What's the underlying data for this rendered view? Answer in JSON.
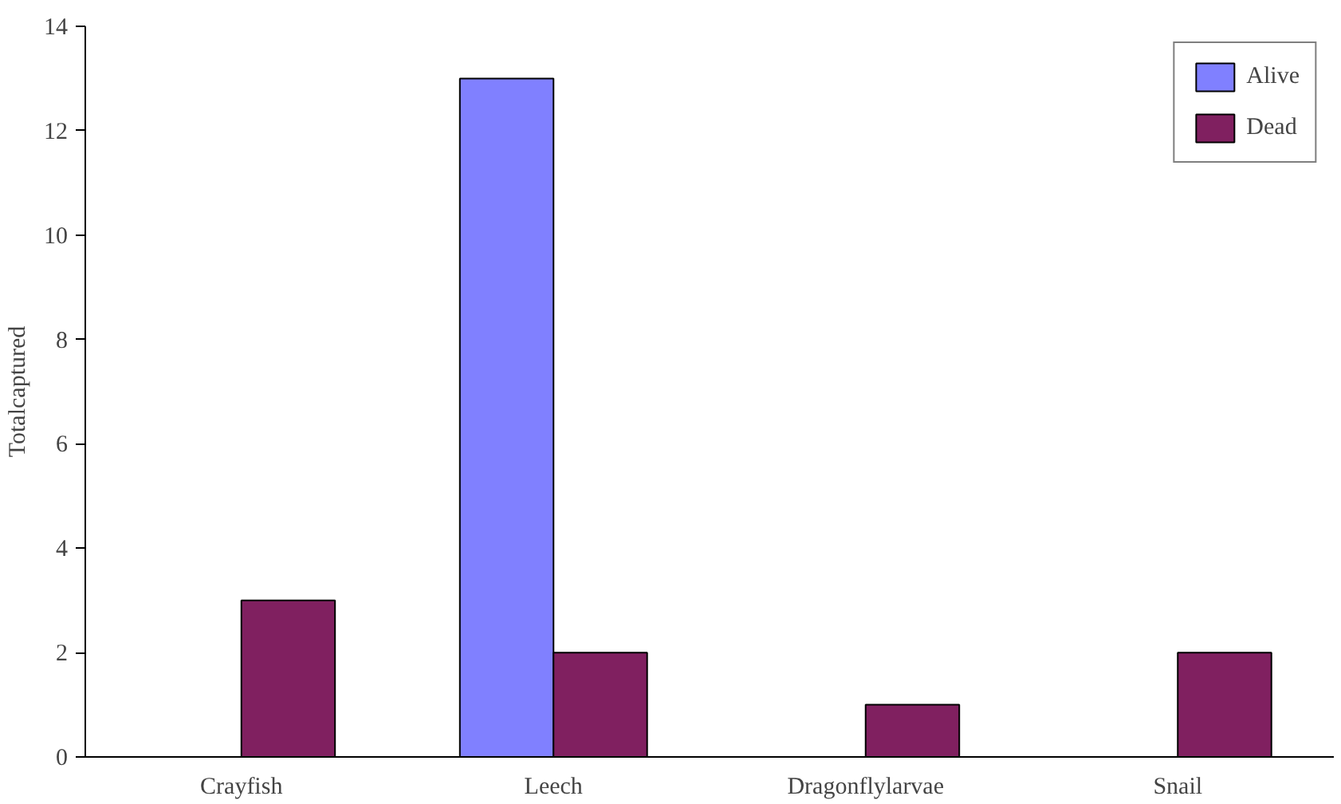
{
  "chart_data": {
    "type": "bar",
    "ylabel": "Totalcaptured",
    "categories": [
      "Crayfish",
      "Leech",
      "Dragonflylarvae",
      "Snail"
    ],
    "series": [
      {
        "name": "Alive",
        "color": "#8080ff",
        "values": [
          null,
          13,
          null,
          null
        ]
      },
      {
        "name": "Dead",
        "color": "#802060",
        "values": [
          3,
          2,
          1,
          2
        ]
      }
    ],
    "ylim": [
      0,
      14
    ],
    "yticks": [
      0,
      2,
      4,
      6,
      8,
      10,
      12,
      14
    ],
    "grid": false,
    "legend": "top right"
  }
}
